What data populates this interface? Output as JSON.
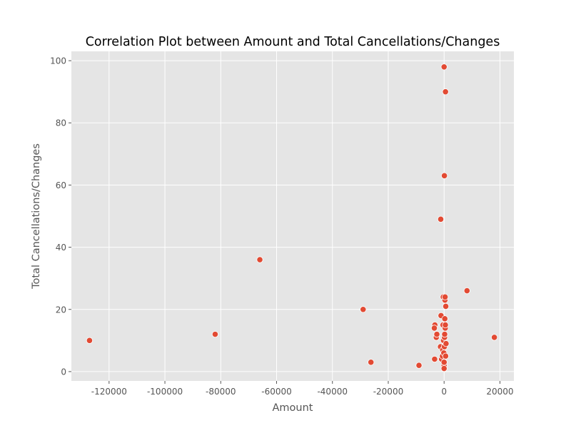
{
  "chart_data": {
    "type": "scatter",
    "title": "Correlation Plot between Amount and Total Cancellations/Changes",
    "xlabel": "Amount",
    "ylabel": "Total Cancellations/Changes",
    "xlim": [
      -133500,
      25000
    ],
    "ylim": [
      -3,
      103
    ],
    "xticks": [
      -120000,
      -100000,
      -80000,
      -60000,
      -40000,
      -20000,
      0,
      20000
    ],
    "yticks": [
      0,
      20,
      40,
      60,
      80,
      100
    ],
    "grid": true,
    "background": "#e5e5e5",
    "grid_color": "#ffffff",
    "marker_color": "#e24a33",
    "marker_edge_color": "#ffffff",
    "points": [
      {
        "x": -127000,
        "y": 10
      },
      {
        "x": -82000,
        "y": 12
      },
      {
        "x": -66000,
        "y": 36
      },
      {
        "x": -29000,
        "y": 20
      },
      {
        "x": -26200,
        "y": 3
      },
      {
        "x": -9000,
        "y": 2
      },
      {
        "x": -3400,
        "y": 4
      },
      {
        "x": -3300,
        "y": 15
      },
      {
        "x": -3500,
        "y": 14
      },
      {
        "x": -2800,
        "y": 11
      },
      {
        "x": -2600,
        "y": 12
      },
      {
        "x": -1300,
        "y": 8
      },
      {
        "x": -1100,
        "y": 18
      },
      {
        "x": -1200,
        "y": 49
      },
      {
        "x": -900,
        "y": 4
      },
      {
        "x": -600,
        "y": 5
      },
      {
        "x": -500,
        "y": 7
      },
      {
        "x": -400,
        "y": 15
      },
      {
        "x": -300,
        "y": 24
      },
      {
        "x": -200,
        "y": 10
      },
      {
        "x": -100,
        "y": 6
      },
      {
        "x": 0,
        "y": 98
      },
      {
        "x": 100,
        "y": 63
      },
      {
        "x": 0,
        "y": 2
      },
      {
        "x": 0,
        "y": 1
      },
      {
        "x": 0,
        "y": 3
      },
      {
        "x": 100,
        "y": 8
      },
      {
        "x": 150,
        "y": 11
      },
      {
        "x": 200,
        "y": 12
      },
      {
        "x": 250,
        "y": 17
      },
      {
        "x": 300,
        "y": 23
      },
      {
        "x": 350,
        "y": 24
      },
      {
        "x": 400,
        "y": 14
      },
      {
        "x": 450,
        "y": 15
      },
      {
        "x": 500,
        "y": 90
      },
      {
        "x": 550,
        "y": 5
      },
      {
        "x": 700,
        "y": 9
      },
      {
        "x": 600,
        "y": 21
      },
      {
        "x": 8200,
        "y": 26
      },
      {
        "x": 18000,
        "y": 11
      }
    ]
  }
}
